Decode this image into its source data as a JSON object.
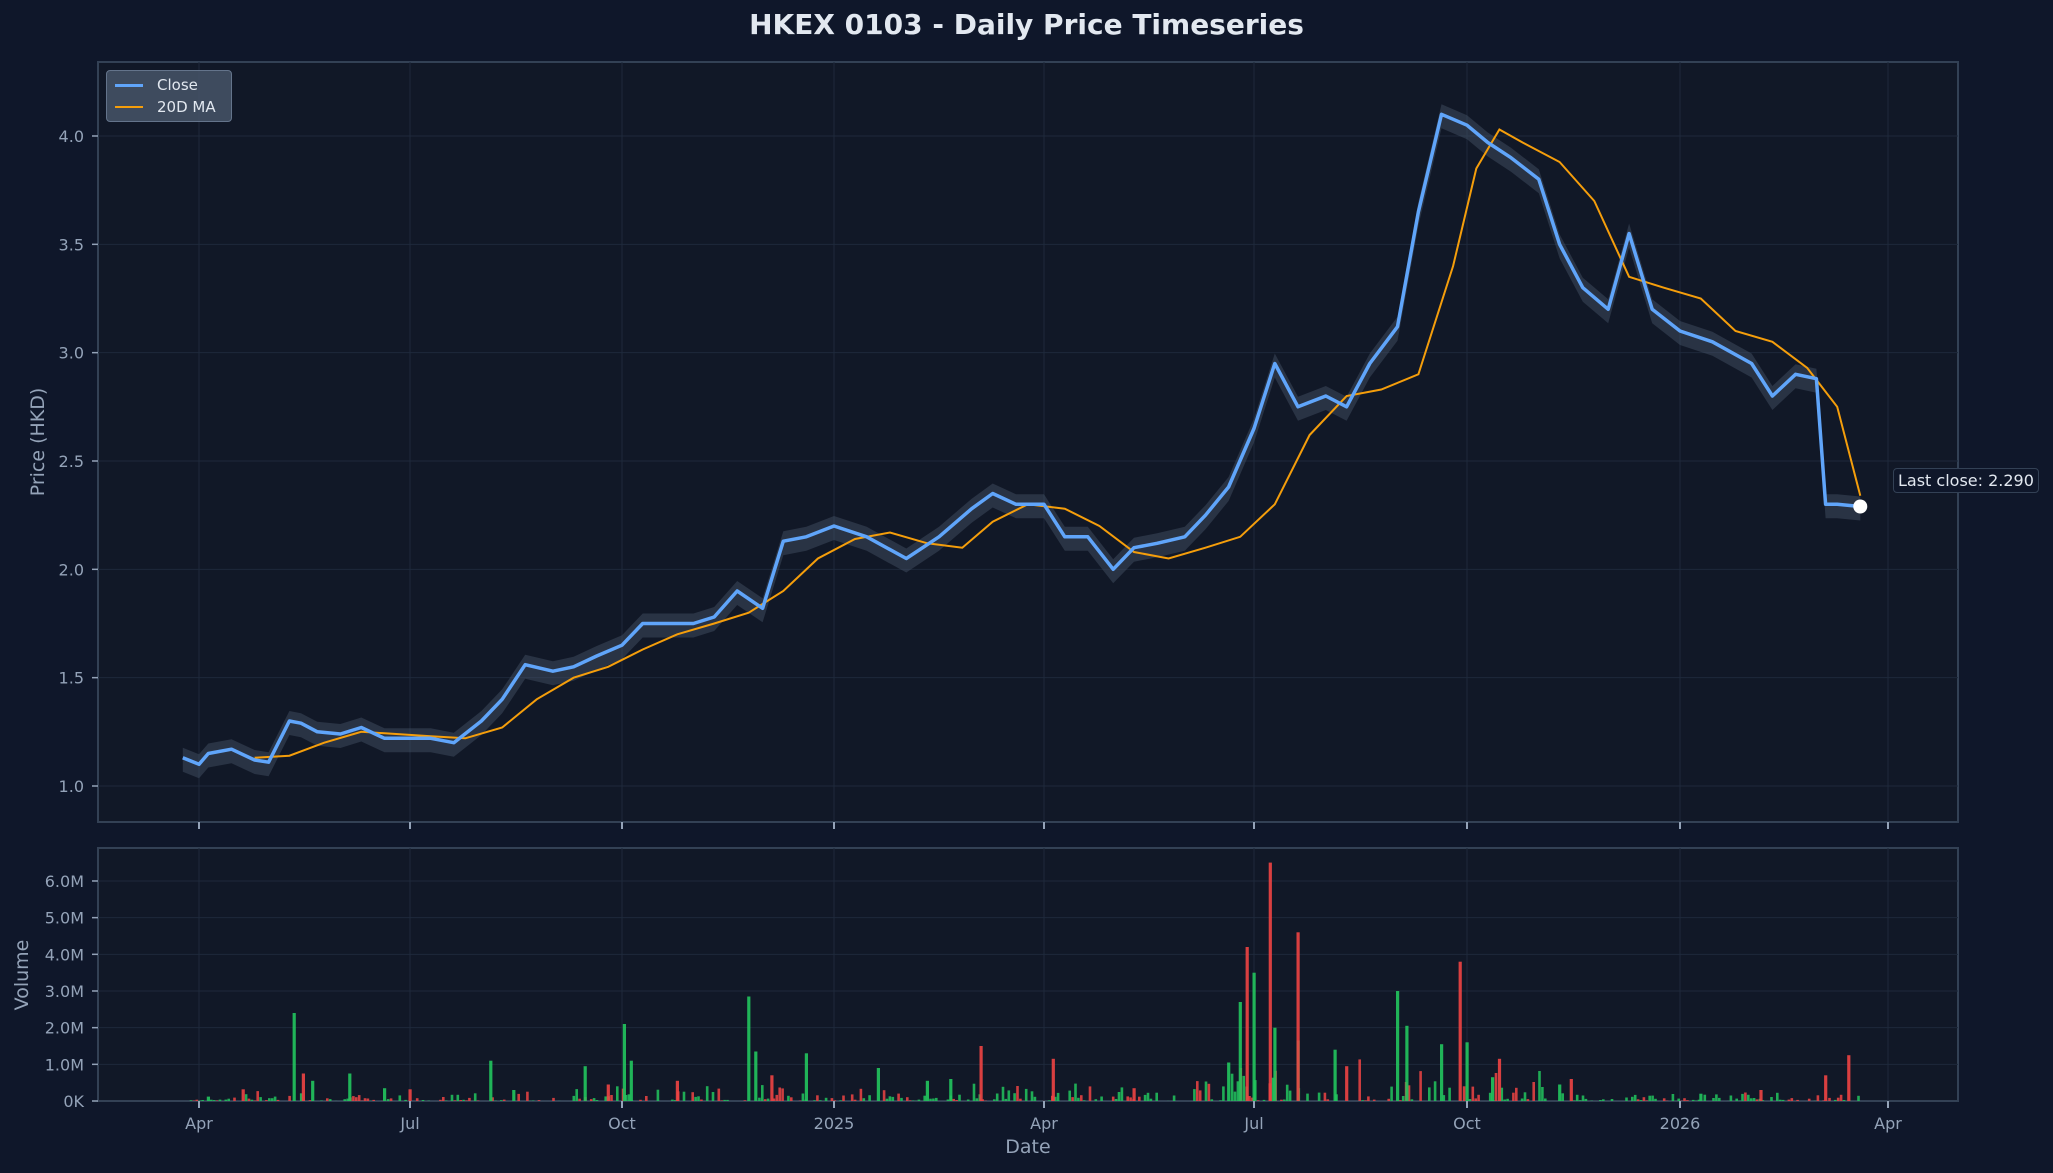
{
  "title": "HKEX 0103 - Daily Price Timeseries",
  "colors": {
    "background": "#0f172a",
    "plot_bg": "#111827",
    "close": "#60a5fa",
    "ma": "#f59e0b",
    "up_volume": "#22c55e",
    "down_volume": "#ef4444",
    "grid": "#1e293b",
    "frame": "#334155"
  },
  "legend": {
    "items": [
      {
        "label": "Close",
        "color": "#60a5fa"
      },
      {
        "label": "20D MA",
        "color": "#f59e0b"
      }
    ]
  },
  "annotation": {
    "last_close_label": "Last close: 2.290"
  },
  "chart_data": [
    {
      "type": "line",
      "title": "HKEX 0103 - Daily Price Timeseries",
      "xlabel": "",
      "ylabel": "Price (HKD)",
      "ylim": [
        0.83,
        4.36
      ],
      "yticks": [
        "1.0",
        "1.5",
        "2.0",
        "2.5",
        "3.0",
        "3.5",
        "4.0"
      ],
      "xticks": [
        "Apr",
        "Jul",
        "Oct",
        "2025",
        "Apr",
        "Jul",
        "Oct",
        "2026",
        "Apr"
      ],
      "grid": true,
      "legend_position": "upper left",
      "series": [
        {
          "name": "Close",
          "x": [
            "2024-03-25",
            "2024-04-01",
            "2024-04-05",
            "2024-04-15",
            "2024-04-25",
            "2024-05-01",
            "2024-05-10",
            "2024-05-15",
            "2024-05-22",
            "2024-06-01",
            "2024-06-10",
            "2024-06-20",
            "2024-07-01",
            "2024-07-10",
            "2024-07-20",
            "2024-08-01",
            "2024-08-10",
            "2024-08-20",
            "2024-09-01",
            "2024-09-10",
            "2024-09-20",
            "2024-10-01",
            "2024-10-10",
            "2024-10-20",
            "2024-11-01",
            "2024-11-10",
            "2024-11-20",
            "2024-12-01",
            "2024-12-10",
            "2024-12-20",
            "2025-01-01",
            "2025-01-15",
            "2025-02-01",
            "2025-02-15",
            "2025-03-01",
            "2025-03-10",
            "2025-03-20",
            "2025-04-01",
            "2025-04-10",
            "2025-04-20",
            "2025-05-01",
            "2025-05-10",
            "2025-05-20",
            "2025-06-01",
            "2025-06-10",
            "2025-06-20",
            "2025-07-01",
            "2025-07-10",
            "2025-07-20",
            "2025-08-01",
            "2025-08-10",
            "2025-08-20",
            "2025-09-01",
            "2025-09-10",
            "2025-09-20",
            "2025-10-01",
            "2025-10-10",
            "2025-10-20",
            "2025-11-01",
            "2025-11-10",
            "2025-11-20",
            "2025-12-01",
            "2025-12-10",
            "2025-12-20",
            "2026-01-01",
            "2026-01-15",
            "2026-02-01",
            "2026-02-10",
            "2026-02-20",
            "2026-03-01",
            "2026-03-05",
            "2026-03-10",
            "2026-03-20"
          ],
          "values": [
            1.13,
            1.1,
            1.15,
            1.17,
            1.12,
            1.11,
            1.3,
            1.29,
            1.25,
            1.24,
            1.27,
            1.22,
            1.22,
            1.22,
            1.2,
            1.3,
            1.4,
            1.56,
            1.53,
            1.55,
            1.6,
            1.65,
            1.75,
            1.75,
            1.75,
            1.78,
            1.9,
            1.82,
            2.13,
            2.15,
            2.2,
            2.15,
            2.05,
            2.15,
            2.28,
            2.35,
            2.3,
            2.3,
            2.15,
            2.15,
            2.0,
            2.1,
            2.12,
            2.15,
            2.25,
            2.38,
            2.65,
            2.95,
            2.75,
            2.8,
            2.75,
            2.95,
            3.12,
            3.65,
            4.1,
            4.05,
            3.97,
            3.9,
            3.8,
            3.5,
            3.3,
            3.2,
            3.55,
            3.2,
            3.1,
            3.05,
            2.95,
            2.8,
            2.9,
            2.88,
            2.3,
            2.3,
            2.29
          ]
        },
        {
          "name": "20D MA",
          "x": [
            "2024-04-25",
            "2024-05-10",
            "2024-05-25",
            "2024-06-10",
            "2024-06-25",
            "2024-07-10",
            "2024-07-25",
            "2024-08-10",
            "2024-08-25",
            "2024-09-10",
            "2024-09-25",
            "2024-10-10",
            "2024-10-25",
            "2024-11-10",
            "2024-11-25",
            "2024-12-10",
            "2024-12-25",
            "2025-01-10",
            "2025-01-25",
            "2025-02-10",
            "2025-02-25",
            "2025-03-10",
            "2025-03-25",
            "2025-04-10",
            "2025-04-25",
            "2025-05-10",
            "2025-05-25",
            "2025-06-10",
            "2025-06-25",
            "2025-07-10",
            "2025-07-25",
            "2025-08-10",
            "2025-08-25",
            "2025-09-10",
            "2025-09-25",
            "2025-10-05",
            "2025-10-15",
            "2025-10-25",
            "2025-11-10",
            "2025-11-25",
            "2025-12-10",
            "2025-12-25",
            "2026-01-10",
            "2026-01-25",
            "2026-02-10",
            "2026-02-25",
            "2026-03-10",
            "2026-03-20"
          ],
          "values": [
            1.13,
            1.14,
            1.2,
            1.25,
            1.24,
            1.23,
            1.22,
            1.27,
            1.4,
            1.5,
            1.55,
            1.63,
            1.7,
            1.75,
            1.8,
            1.9,
            2.05,
            2.14,
            2.17,
            2.12,
            2.1,
            2.22,
            2.3,
            2.28,
            2.2,
            2.08,
            2.05,
            2.1,
            2.15,
            2.3,
            2.62,
            2.8,
            2.83,
            2.9,
            3.4,
            3.85,
            4.03,
            3.97,
            3.88,
            3.7,
            3.35,
            3.3,
            3.25,
            3.1,
            3.05,
            2.93,
            2.75,
            2.34
          ]
        }
      ],
      "annotations": [
        {
          "text": "Last close: 2.290",
          "x": "2026-03-20",
          "y": 2.29
        }
      ]
    },
    {
      "type": "bar",
      "title": "",
      "xlabel": "Date",
      "ylabel": "Volume",
      "ylim": [
        0,
        6.9
      ],
      "yticks": [
        "0K",
        "1.0M",
        "2.0M",
        "3.0M",
        "4.0M",
        "5.0M",
        "6.0M"
      ],
      "xticks": [
        "Apr",
        "Jul",
        "Oct",
        "2025",
        "Apr",
        "Jul",
        "Oct",
        "2026",
        "Apr"
      ],
      "units": "millions of shares",
      "series": [
        {
          "name": "Volume (up days)",
          "color": "#22c55e",
          "x": [
            "2024-04-05",
            "2024-05-12",
            "2024-05-20",
            "2024-06-05",
            "2024-06-20",
            "2024-08-05",
            "2024-08-15",
            "2024-09-15",
            "2024-10-02",
            "2024-10-05",
            "2024-11-25",
            "2024-11-28",
            "2024-12-20",
            "2025-01-20",
            "2025-02-10",
            "2025-02-20",
            "2025-06-20",
            "2025-06-25",
            "2025-07-01",
            "2025-07-10",
            "2025-07-20",
            "2025-08-05",
            "2025-09-01",
            "2025-09-05",
            "2025-09-20",
            "2025-10-01",
            "2025-10-12",
            "2025-11-10",
            "2026-01-10"
          ],
          "values": [
            0.12,
            2.4,
            0.55,
            0.75,
            0.35,
            1.1,
            0.3,
            0.95,
            2.1,
            1.1,
            2.85,
            1.35,
            1.3,
            0.9,
            0.55,
            0.6,
            1.05,
            2.7,
            3.5,
            2.0,
            1.65,
            1.4,
            3.0,
            2.05,
            1.55,
            1.6,
            0.65,
            0.45,
            0.2
          ]
        },
        {
          "name": "Volume (down days)",
          "color": "#ef4444",
          "x": [
            "2024-04-20",
            "2024-05-16",
            "2024-07-01",
            "2024-09-25",
            "2024-10-25",
            "2024-12-05",
            "2025-03-05",
            "2025-04-05",
            "2025-05-10",
            "2025-06-28",
            "2025-07-08",
            "2025-07-20",
            "2025-08-10",
            "2025-09-28",
            "2025-10-15",
            "2025-11-15",
            "2026-02-05",
            "2026-03-05",
            "2026-03-15"
          ],
          "values": [
            0.32,
            0.75,
            0.32,
            0.45,
            0.55,
            0.7,
            1.5,
            1.15,
            0.35,
            4.2,
            6.5,
            4.6,
            0.95,
            3.8,
            1.15,
            0.6,
            0.3,
            0.7,
            1.25
          ]
        }
      ]
    }
  ],
  "axes": {
    "price_ylabel": "Price (HKD)",
    "volume_ylabel": "Volume",
    "xlabel": "Date"
  }
}
